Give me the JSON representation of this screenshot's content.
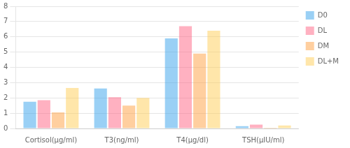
{
  "chart_data": {
    "type": "bar",
    "categories": [
      "Cortisol(μg/ml)",
      "T3(ng/ml)",
      "T4(μg/dl)",
      "TSH(μIU/ml)"
    ],
    "series": [
      {
        "name": "D0",
        "values": [
          1.75,
          2.62,
          5.9,
          0.15
        ]
      },
      {
        "name": "DL",
        "values": [
          1.85,
          2.05,
          6.7,
          0.25
        ]
      },
      {
        "name": "DM",
        "values": [
          1.05,
          1.5,
          4.9,
          0.05
        ]
      },
      {
        "name": "DL+M",
        "values": [
          2.65,
          2.0,
          6.4,
          0.2
        ]
      }
    ],
    "ylim": [
      0,
      8
    ],
    "yticks": [
      0,
      1,
      2,
      3,
      4,
      5,
      6,
      7,
      8
    ],
    "grid": true,
    "legend": "right"
  }
}
